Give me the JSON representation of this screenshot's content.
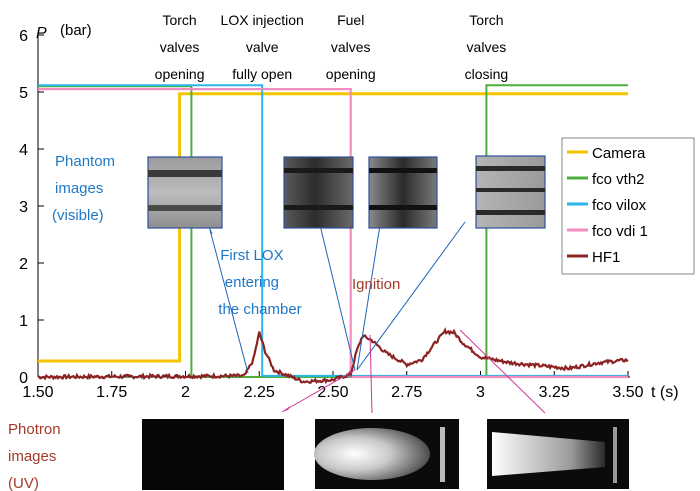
{
  "chart_data": {
    "type": "line",
    "ylabel_symbol": "P",
    "ylabel_unit": "(bar)",
    "xlabel": "t (s)",
    "xlim": [
      1.5,
      3.5
    ],
    "ylim": [
      0,
      6
    ],
    "xtick_labels": [
      "1.50",
      "1.75",
      "2",
      "2.25",
      "2.50",
      "2.75",
      "3",
      "3.25",
      "3.50"
    ],
    "xtick_values": [
      1.5,
      1.75,
      2.0,
      2.25,
      2.5,
      2.75,
      3.0,
      3.25,
      3.5
    ],
    "ytick_labels": [
      "0",
      "1",
      "2",
      "3",
      "4",
      "5",
      "6"
    ],
    "ytick_values": [
      0,
      1,
      2,
      3,
      4,
      5,
      6
    ],
    "grid": false,
    "legend_position": "right",
    "series": [
      {
        "name": "Camera",
        "color": "#f5c400",
        "x": [
          1.5,
          1.98,
          1.98,
          3.5
        ],
        "y": [
          0.28,
          0.28,
          4.97,
          4.97
        ]
      },
      {
        "name": "fco vth2",
        "color": "#4caf3c",
        "x": [
          1.5,
          2.02,
          2.02,
          3.02,
          3.02,
          3.5
        ],
        "y": [
          5.1,
          5.1,
          0.0,
          0.0,
          5.12,
          5.12
        ]
      },
      {
        "name": "fco vilox",
        "color": "#29b6e8",
        "x": [
          1.5,
          2.26,
          2.26,
          3.5
        ],
        "y": [
          5.12,
          5.12,
          0.02,
          0.02
        ]
      },
      {
        "name": "fco vdi 1",
        "color": "#f48cbf",
        "x": [
          1.5,
          2.56,
          2.56,
          3.5
        ],
        "y": [
          5.05,
          5.05,
          0.0,
          0.0
        ]
      },
      {
        "name": "HF1",
        "color": "#8b2323",
        "x": [
          1.5,
          2.2,
          2.23,
          2.25,
          2.27,
          2.3,
          2.4,
          2.5,
          2.56,
          2.58,
          2.6,
          2.63,
          2.68,
          2.75,
          2.8,
          2.85,
          2.88,
          2.91,
          2.94,
          3.0,
          3.05,
          3.1,
          3.2,
          3.3,
          3.4,
          3.5
        ],
        "y": [
          0.0,
          0.02,
          0.3,
          0.78,
          0.45,
          0.12,
          -0.08,
          -0.05,
          0.05,
          0.45,
          0.72,
          0.65,
          0.42,
          0.22,
          0.3,
          0.62,
          0.8,
          0.78,
          0.6,
          0.35,
          0.3,
          0.25,
          0.2,
          0.15,
          0.25,
          0.3
        ]
      }
    ],
    "annotations": [
      {
        "text": [
          "Torch",
          "valves",
          "opening"
        ],
        "x": 1.98
      },
      {
        "text": [
          "LOX injection",
          "valve",
          "fully open"
        ],
        "x": 2.26
      },
      {
        "text": [
          "Fuel",
          "valves",
          "opening"
        ],
        "x": 2.56
      },
      {
        "text": [
          "Torch",
          "valves",
          "closing"
        ],
        "x": 3.02
      }
    ],
    "callouts": [
      {
        "text": [
          "First LOX",
          "entering",
          "the chamber"
        ],
        "color": "#1e78c8"
      },
      {
        "text": [
          "Ignition"
        ],
        "color": "#a33a2a"
      }
    ],
    "phantom_label": {
      "text": [
        "Phantom",
        "images",
        "(visible)"
      ],
      "color": "#1e78c8"
    },
    "photron_label": {
      "text": [
        "Photron",
        "images",
        "(UV)"
      ],
      "color": "#a33a2a"
    }
  }
}
